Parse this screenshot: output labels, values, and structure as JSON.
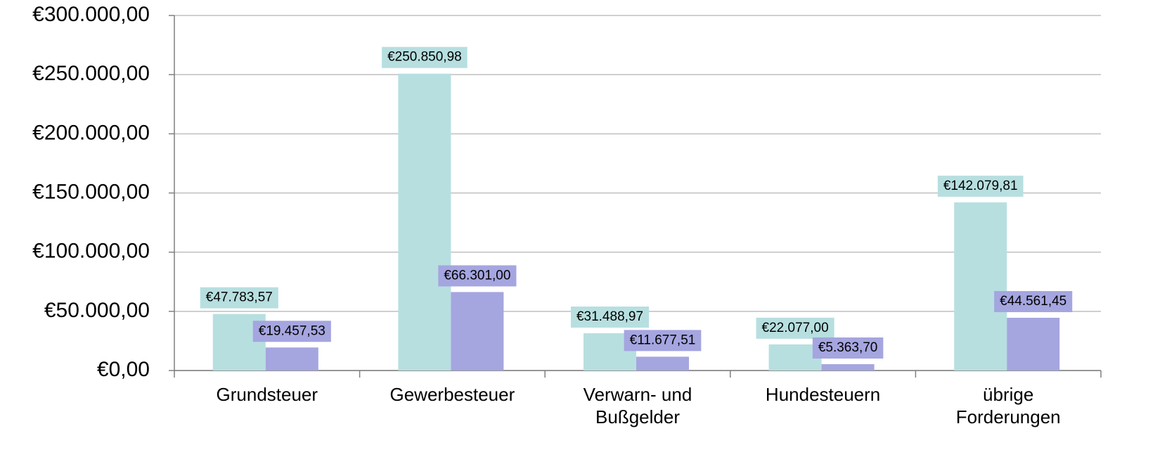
{
  "chart_data": {
    "type": "bar",
    "categories": [
      "Grundsteuer",
      "Gewerbesteuer",
      "Verwarn- und Bußgelder",
      "Hundesteuern",
      "übrige Forderungen"
    ],
    "series": [
      {
        "color": "#b7dfe0",
        "values": [
          47783.57,
          250850.98,
          31488.97,
          22077.0,
          142079.81
        ],
        "value_labels": [
          "€47.783,57",
          "€250.850,98",
          "€31.488,97",
          "€22.077,00",
          "€142.079,81"
        ]
      },
      {
        "color": "#a5a5e0",
        "values": [
          19457.53,
          66301.0,
          11677.51,
          5363.7,
          44561.45
        ],
        "value_labels": [
          "€19.457,53",
          "€66.301,00",
          "€11.677,51",
          "€5.363,70",
          "€44.561,45"
        ]
      }
    ],
    "ylim": [
      0,
      300000
    ],
    "yticks": [
      {
        "value": 0,
        "label": "€0,00"
      },
      {
        "value": 50000,
        "label": "€50.000,00"
      },
      {
        "value": 100000,
        "label": "€100.000,00"
      },
      {
        "value": 150000,
        "label": "€150.000,00"
      },
      {
        "value": 200000,
        "label": "€200.000,00"
      },
      {
        "value": 250000,
        "label": "€250.000,00"
      },
      {
        "value": 300000,
        "label": "€300.000,00"
      }
    ],
    "grid": true
  }
}
